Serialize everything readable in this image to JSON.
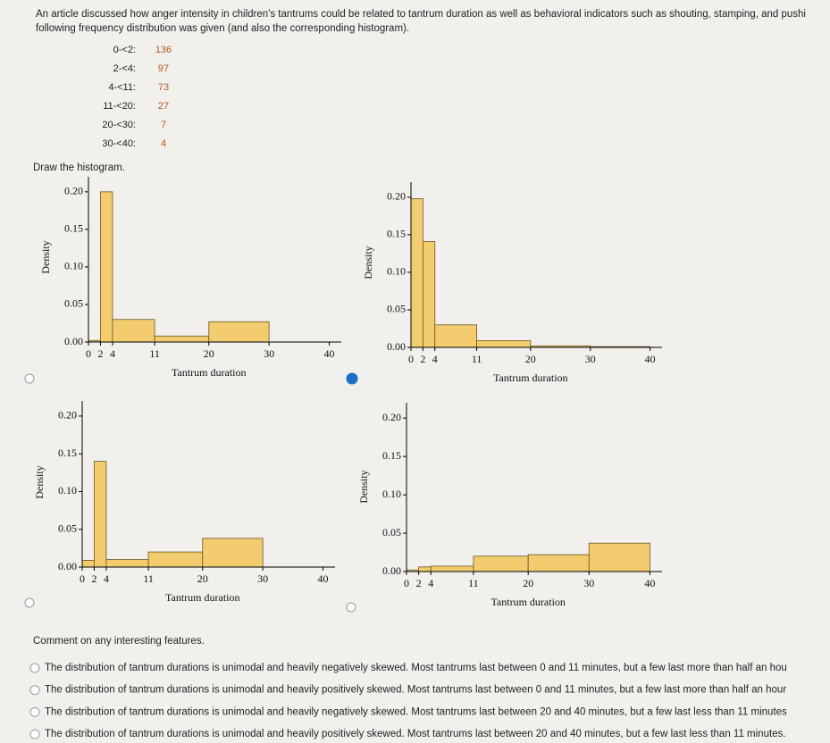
{
  "question": {
    "text": [
      "An article discussed how anger intensity in children's tantrums could be related to tantrum duration as well as behavioral indicators such as shouting, stamping, and pushi",
      "following frequency distribution was given (and also the corresponding histogram)."
    ],
    "classes": [
      "0-<2:",
      "2-<4:",
      "4-<11:",
      "11-<20:",
      "20-<30:",
      "30-<40:"
    ],
    "frequencies": [
      136,
      97,
      73,
      27,
      7,
      4
    ],
    "prompt": "Draw the histogram."
  },
  "chart_data": [
    {
      "type": "histogram",
      "bins": [
        0,
        2,
        4,
        11,
        20,
        30,
        40
      ],
      "values": [
        0.002,
        0.2,
        0.03,
        0.008,
        0.027,
        0.0
      ],
      "color": "#f2cc6e",
      "xlim": [
        0,
        42
      ],
      "ylim": [
        0,
        0.22
      ],
      "xticks": [
        0,
        2,
        4,
        11,
        20,
        30,
        40
      ],
      "yticks": [
        {
          "value": 0,
          "label": "0.00"
        },
        {
          "value": 0.05,
          "label": "0.05"
        },
        {
          "value": 0.1,
          "label": "0.10"
        },
        {
          "value": 0.15,
          "label": "0.15"
        },
        {
          "value": 0.2,
          "label": "0.20"
        }
      ],
      "xlabel": "Tantrum duration",
      "ylabel": "Density"
    },
    {
      "type": "histogram",
      "bins": [
        0,
        2,
        4,
        11,
        20,
        30,
        40
      ],
      "values": [
        0.198,
        0.141,
        0.03,
        0.009,
        0.002,
        0.001
      ],
      "color": "#f2cc6e",
      "xlim": [
        0,
        42
      ],
      "ylim": [
        0,
        0.22
      ],
      "xticks": [
        0,
        2,
        4,
        11,
        20,
        30,
        40
      ],
      "yticks": [
        {
          "value": 0,
          "label": "0.00"
        },
        {
          "value": 0.05,
          "label": "0.05"
        },
        {
          "value": 0.1,
          "label": "0.10"
        },
        {
          "value": 0.15,
          "label": "0.15"
        },
        {
          "value": 0.2,
          "label": "0.20"
        }
      ],
      "xlabel": "Tantrum duration",
      "ylabel": "Density"
    },
    {
      "type": "histogram",
      "bins": [
        0,
        2,
        4,
        11,
        20,
        30,
        40
      ],
      "values": [
        0.009,
        0.14,
        0.01,
        0.02,
        0.038,
        0.0
      ],
      "color": "#f2cc6e",
      "xlim": [
        0,
        42
      ],
      "ylim": [
        0,
        0.22
      ],
      "xticks": [
        0,
        2,
        4,
        11,
        20,
        30,
        40
      ],
      "yticks": [
        {
          "value": 0,
          "label": "0.00"
        },
        {
          "value": 0.05,
          "label": "0.05"
        },
        {
          "value": 0.1,
          "label": "0.10"
        },
        {
          "value": 0.15,
          "label": "0.15"
        },
        {
          "value": 0.2,
          "label": "0.20"
        }
      ],
      "xlabel": "Tantrum duration",
      "ylabel": "Density"
    },
    {
      "type": "histogram",
      "bins": [
        0,
        2,
        4,
        11,
        20,
        30,
        40
      ],
      "values": [
        0.002,
        0.006,
        0.007,
        0.02,
        0.022,
        0.037
      ],
      "color": "#f2cc6e",
      "xlim": [
        0,
        42
      ],
      "ylim": [
        0,
        0.22
      ],
      "xticks": [
        0,
        2,
        4,
        11,
        20,
        30,
        40
      ],
      "yticks": [
        {
          "value": 0,
          "label": "0.00"
        },
        {
          "value": 0.05,
          "label": "0.05"
        },
        {
          "value": 0.1,
          "label": "0.10"
        },
        {
          "value": 0.15,
          "label": "0.15"
        },
        {
          "value": 0.2,
          "label": "0.20"
        }
      ],
      "xlabel": "Tantrum duration",
      "ylabel": "Density"
    }
  ],
  "comment": {
    "prompt": "Comment on any interesting features.",
    "options": [
      "The distribution of tantrum durations is unimodal and heavily negatively skewed. Most tantrums last between 0 and 11 minutes, but a few last more than half an hou",
      "The distribution of tantrum durations is unimodal and heavily positively skewed. Most tantrums last between 0 and 11 minutes, but a few last more than half an hour",
      "The distribution of tantrum durations is unimodal and heavily negatively skewed. Most tantrums last between 20 and 40 minutes, but a few last less than 11 minutes",
      "The distribution of tantrum durations is unimodal and heavily positively skewed. Most tantrums last between 20 and 40 minutes, but a few last less than 11 minutes."
    ]
  }
}
